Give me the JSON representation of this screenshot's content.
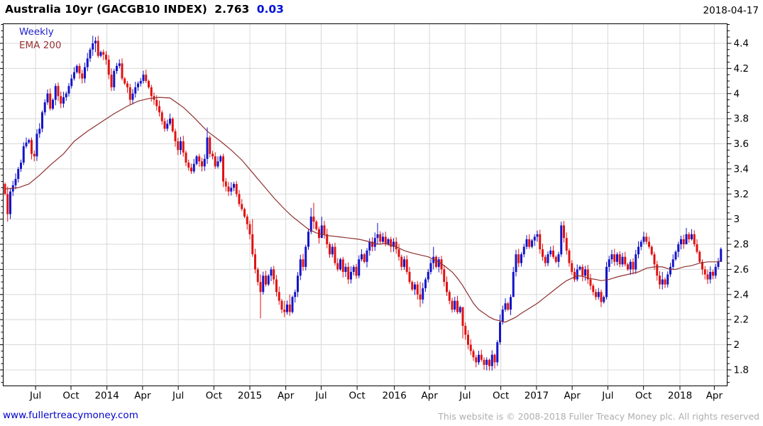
{
  "header": {
    "instrument": "Australia 10yr (GACGB10 INDEX)",
    "last": "2.763",
    "change": "0.03",
    "date": "2018-04-17"
  },
  "legend": {
    "timeframe": "Weekly",
    "overlay": "EMA 200"
  },
  "footer": {
    "link": "www.fullertreacymoney.com",
    "copyright": "This website is © 2008-2018 Fuller Treacy Money plc. All rights reserved"
  },
  "colors": {
    "up_candle": "#1414c8",
    "down_candle": "#e01212",
    "ema_line": "#8f3030",
    "grid": "#d8d8d8",
    "axis": "#000000",
    "change_text": "#0011d6",
    "link_text": "#0000cc",
    "copyright_text": "#aeaeae"
  },
  "chart_data": {
    "type": "candlestick",
    "title": "Australia 10yr (GACGB10 INDEX)",
    "timeframe": "Weekly",
    "overlay": "EMA 200",
    "last_price": 2.763,
    "change": 0.03,
    "grid": true,
    "y_axis": {
      "min": 1.67,
      "max": 4.56,
      "tick_step": 0.2,
      "minor_tick_step": 0.05,
      "tick_values": [
        4.4,
        4.2,
        4.0,
        3.8,
        3.6,
        3.4,
        3.2,
        3.0,
        2.8,
        2.6,
        2.4,
        2.2,
        2.0,
        1.8
      ],
      "tick_labels": [
        "4.4",
        "4.2",
        "4",
        "3.8",
        "3.6",
        "3.4",
        "3.2",
        "3",
        "2.8",
        "2.6",
        "2.4",
        "2.2",
        "2",
        "1.8"
      ]
    },
    "x_ticks": [
      {
        "label": "Jul",
        "week": 11.5
      },
      {
        "label": "Oct",
        "week": 24.8
      },
      {
        "label": "2014",
        "week": 38.3
      },
      {
        "label": "Apr",
        "week": 51.7
      },
      {
        "label": "Jul",
        "week": 65.1
      },
      {
        "label": "Oct",
        "week": 78.5
      },
      {
        "label": "2015",
        "week": 92.0
      },
      {
        "label": "Apr",
        "week": 105.5
      },
      {
        "label": "Jul",
        "week": 118.8
      },
      {
        "label": "Oct",
        "week": 132.3
      },
      {
        "label": "2016",
        "week": 146.3
      },
      {
        "label": "Apr",
        "week": 159.5
      },
      {
        "label": "Jul",
        "week": 172.9
      },
      {
        "label": "Oct",
        "week": 186.3
      },
      {
        "label": "2017",
        "week": 199.7
      },
      {
        "label": "Apr",
        "week": 213.1
      },
      {
        "label": "Jul",
        "week": 226.5
      },
      {
        "label": "Oct",
        "week": 239.9
      },
      {
        "label": "2018",
        "week": 253.6
      },
      {
        "label": "Apr",
        "week": 266.5
      }
    ],
    "first_open": 3.28,
    "closes": [
      3.2,
      3.04,
      3.22,
      3.27,
      3.32,
      3.4,
      3.45,
      3.58,
      3.61,
      3.63,
      3.52,
      3.5,
      3.68,
      3.72,
      3.85,
      3.93,
      4.0,
      3.88,
      3.95,
      4.06,
      3.98,
      3.92,
      3.97,
      4.0,
      4.06,
      4.12,
      4.17,
      4.22,
      4.16,
      4.12,
      4.21,
      4.28,
      4.35,
      4.4,
      4.42,
      4.3,
      4.33,
      4.31,
      4.27,
      4.15,
      4.05,
      4.18,
      4.22,
      4.24,
      4.12,
      4.08,
      4.05,
      3.95,
      4.0,
      4.05,
      4.08,
      4.1,
      4.15,
      4.1,
      4.05,
      3.98,
      3.95,
      3.9,
      3.85,
      3.78,
      3.72,
      3.76,
      3.8,
      3.7,
      3.62,
      3.55,
      3.62,
      3.53,
      3.45,
      3.41,
      3.38,
      3.44,
      3.5,
      3.46,
      3.42,
      3.48,
      3.65,
      3.52,
      3.5,
      3.42,
      3.46,
      3.5,
      3.3,
      3.26,
      3.22,
      3.25,
      3.28,
      3.2,
      3.12,
      3.08,
      3.02,
      2.96,
      2.88,
      2.72,
      2.6,
      2.5,
      2.42,
      2.55,
      2.48,
      2.55,
      2.6,
      2.52,
      2.42,
      2.35,
      2.28,
      2.26,
      2.32,
      2.26,
      2.38,
      2.42,
      2.55,
      2.68,
      2.62,
      2.78,
      2.9,
      3.02,
      2.98,
      2.92,
      2.85,
      2.95,
      2.88,
      2.8,
      2.72,
      2.78,
      2.65,
      2.6,
      2.68,
      2.58,
      2.62,
      2.52,
      2.58,
      2.62,
      2.55,
      2.68,
      2.72,
      2.66,
      2.75,
      2.82,
      2.78,
      2.85,
      2.88,
      2.82,
      2.86,
      2.8,
      2.84,
      2.78,
      2.82,
      2.76,
      2.7,
      2.62,
      2.68,
      2.58,
      2.5,
      2.44,
      2.48,
      2.4,
      2.36,
      2.45,
      2.52,
      2.58,
      2.65,
      2.7,
      2.62,
      2.68,
      2.6,
      2.5,
      2.42,
      2.35,
      2.28,
      2.35,
      2.26,
      2.3,
      2.15,
      2.08,
      2.0,
      1.95,
      1.9,
      1.86,
      1.92,
      1.88,
      1.84,
      1.88,
      1.83,
      1.92,
      1.86,
      2.02,
      2.18,
      2.28,
      2.33,
      2.28,
      2.38,
      2.58,
      2.72,
      2.65,
      2.72,
      2.78,
      2.84,
      2.78,
      2.83,
      2.86,
      2.88,
      2.76,
      2.7,
      2.65,
      2.72,
      2.75,
      2.7,
      2.66,
      2.72,
      2.95,
      2.85,
      2.75,
      2.65,
      2.58,
      2.52,
      2.6,
      2.62,
      2.55,
      2.6,
      2.52,
      2.47,
      2.42,
      2.38,
      2.42,
      2.34,
      2.38,
      2.62,
      2.68,
      2.72,
      2.66,
      2.72,
      2.64,
      2.7,
      2.64,
      2.6,
      2.66,
      2.6,
      2.72,
      2.78,
      2.82,
      2.86,
      2.82,
      2.78,
      2.72,
      2.64,
      2.55,
      2.48,
      2.52,
      2.48,
      2.56,
      2.62,
      2.68,
      2.74,
      2.8,
      2.84,
      2.8,
      2.88,
      2.84,
      2.88,
      2.8,
      2.74,
      2.66,
      2.6,
      2.56,
      2.52,
      2.58,
      2.55,
      2.62,
      2.66,
      2.763
    ],
    "wick_overrides": {
      "1": [
        2.98,
        3.26
      ],
      "33": [
        4.3,
        4.46
      ],
      "34": [
        4.33,
        4.45
      ],
      "40": [
        4.02,
        4.2
      ],
      "76": [
        3.44,
        3.73
      ],
      "93": [
        2.7,
        3.0
      ],
      "96": [
        2.21,
        2.56
      ],
      "105": [
        2.22,
        2.35
      ],
      "107": [
        2.23,
        2.4
      ],
      "115": [
        2.88,
        3.09
      ],
      "116": [
        2.92,
        3.13
      ],
      "119": [
        2.86,
        3.02
      ],
      "140": [
        2.8,
        2.97
      ],
      "156": [
        2.3,
        2.5
      ],
      "161": [
        2.6,
        2.78
      ],
      "172": [
        2.05,
        2.28
      ],
      "177": [
        1.82,
        1.92
      ],
      "180": [
        1.8,
        1.9
      ],
      "182": [
        1.795,
        1.89
      ],
      "184": [
        1.81,
        1.93
      ],
      "186": [
        2.0,
        2.24
      ],
      "191": [
        2.38,
        2.62
      ],
      "200": [
        2.82,
        2.91
      ],
      "209": [
        2.7,
        2.98
      ],
      "224": [
        2.3,
        2.44
      ],
      "226": [
        2.36,
        2.66
      ],
      "240": [
        2.8,
        2.9
      ],
      "247": [
        2.44,
        2.58
      ],
      "256": [
        2.83,
        2.93
      ],
      "258": [
        2.83,
        2.92
      ],
      "269": [
        2.7,
        2.775
      ]
    },
    "ema_points": [
      [
        0,
        3.24
      ],
      [
        5,
        3.25
      ],
      [
        9,
        3.28
      ],
      [
        13,
        3.35
      ],
      [
        17,
        3.43
      ],
      [
        22,
        3.52
      ],
      [
        26,
        3.62
      ],
      [
        31,
        3.7
      ],
      [
        36,
        3.77
      ],
      [
        41,
        3.84
      ],
      [
        46,
        3.9
      ],
      [
        50,
        3.94
      ],
      [
        54,
        3.96
      ],
      [
        58,
        3.97
      ],
      [
        62,
        3.965
      ],
      [
        67,
        3.89
      ],
      [
        71,
        3.81
      ],
      [
        76,
        3.7
      ],
      [
        81,
        3.62
      ],
      [
        85,
        3.55
      ],
      [
        89,
        3.47
      ],
      [
        93,
        3.37
      ],
      [
        97,
        3.27
      ],
      [
        101,
        3.17
      ],
      [
        105,
        3.08
      ],
      [
        108,
        3.02
      ],
      [
        111,
        2.97
      ],
      [
        114,
        2.92
      ],
      [
        117,
        2.89
      ],
      [
        121,
        2.87
      ],
      [
        125,
        2.86
      ],
      [
        129,
        2.85
      ],
      [
        133,
        2.84
      ],
      [
        137,
        2.82
      ],
      [
        140,
        2.8
      ],
      [
        143,
        2.805
      ],
      [
        147,
        2.78
      ],
      [
        150,
        2.75
      ],
      [
        153,
        2.73
      ],
      [
        156,
        2.715
      ],
      [
        159,
        2.7
      ],
      [
        162,
        2.67
      ],
      [
        165,
        2.63
      ],
      [
        168,
        2.58
      ],
      [
        170,
        2.53
      ],
      [
        172,
        2.47
      ],
      [
        174,
        2.4
      ],
      [
        176,
        2.33
      ],
      [
        178,
        2.28
      ],
      [
        180,
        2.25
      ],
      [
        182,
        2.22
      ],
      [
        184,
        2.2
      ],
      [
        186,
        2.19
      ],
      [
        188,
        2.18
      ],
      [
        190,
        2.2
      ],
      [
        192,
        2.22
      ],
      [
        194,
        2.25
      ],
      [
        197,
        2.29
      ],
      [
        200,
        2.33
      ],
      [
        203,
        2.38
      ],
      [
        206,
        2.43
      ],
      [
        209,
        2.48
      ],
      [
        211,
        2.51
      ],
      [
        213,
        2.53
      ],
      [
        215,
        2.55
      ],
      [
        217,
        2.545
      ],
      [
        219,
        2.53
      ],
      [
        222,
        2.52
      ],
      [
        224,
        2.51
      ],
      [
        227,
        2.52
      ],
      [
        230,
        2.54
      ],
      [
        234,
        2.56
      ],
      [
        238,
        2.58
      ],
      [
        241,
        2.61
      ],
      [
        244,
        2.62
      ],
      [
        247,
        2.62
      ],
      [
        250,
        2.6
      ],
      [
        252,
        2.6
      ],
      [
        255,
        2.62
      ],
      [
        258,
        2.63
      ],
      [
        261,
        2.65
      ],
      [
        264,
        2.66
      ],
      [
        267,
        2.66
      ],
      [
        269,
        2.665
      ]
    ]
  }
}
